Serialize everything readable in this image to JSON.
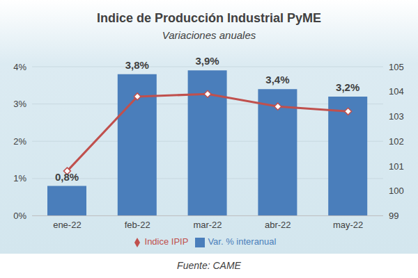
{
  "chart_data": {
    "type": "bar",
    "title": "Indice de Producción Industrial PyME",
    "subtitle": "Variaciones anuales",
    "source": "Fuente: CAME",
    "categories": [
      "ene-22",
      "feb-22",
      "mar-22",
      "abr-22",
      "may-22"
    ],
    "series": [
      {
        "name": "Var. % interanual",
        "type": "bar",
        "color": "#4a7ebb",
        "values": [
          0.8,
          3.8,
          3.9,
          3.4,
          3.2
        ],
        "value_labels": [
          "0,8%",
          "3,8%",
          "3,9%",
          "3,4%",
          "3,2%"
        ]
      },
      {
        "name": "Indice IPIP",
        "type": "line",
        "axis": "y2",
        "color": "#c0504d",
        "marker": "diamond",
        "values": [
          100.8,
          103.8,
          103.9,
          103.4,
          103.2
        ]
      }
    ],
    "ylim": [
      0,
      4
    ],
    "yticks": [
      {
        "value": 0,
        "label": "0%"
      },
      {
        "value": 1,
        "label": "1%"
      },
      {
        "value": 2,
        "label": "2%"
      },
      {
        "value": 3,
        "label": "3%"
      },
      {
        "value": 4,
        "label": "4%"
      }
    ],
    "y2lim": [
      99,
      105
    ],
    "y2ticks": [
      99,
      100,
      101,
      102,
      103,
      104,
      105
    ],
    "grid": true,
    "legend": "bottom",
    "data_labels": true
  }
}
